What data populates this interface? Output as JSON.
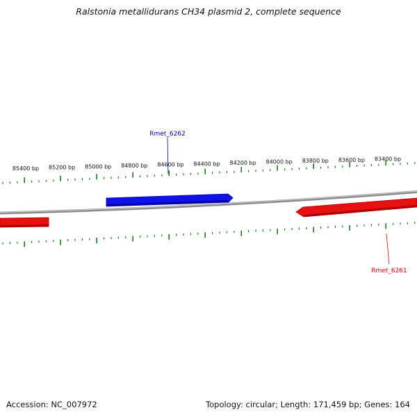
{
  "title": "Ralstonia metallidurans CH34 plasmid 2, complete sequence",
  "accession": {
    "label": "Accession:",
    "value": "NC_007972"
  },
  "stats": {
    "topology_label": "Topology:",
    "topology": "circular",
    "length_label": "Length:",
    "length": "171,459 bp",
    "genes_label": "Genes:",
    "genes": "164"
  },
  "position_labels": [
    "85400 bp",
    "85200 bp",
    "85000 bp",
    "84800 bp",
    "84600 bp",
    "84400 bp",
    "84200 bp",
    "84000 bp",
    "83800 bp",
    "83600 bp",
    "83400 bp"
  ],
  "genes": [
    {
      "name": "Rmet_6262",
      "strand": "forward",
      "color": "#0000dd"
    },
    {
      "name": "Rmet_6261",
      "strand": "reverse",
      "color": "#dd0000"
    },
    {
      "name": "",
      "strand": "reverse",
      "color": "#dd0000"
    }
  ],
  "colors": {
    "backbone": "#8c8c8c",
    "ticks": "#1a7a1a",
    "forward_label": "#0000aa",
    "reverse_label": "#cc0000"
  }
}
